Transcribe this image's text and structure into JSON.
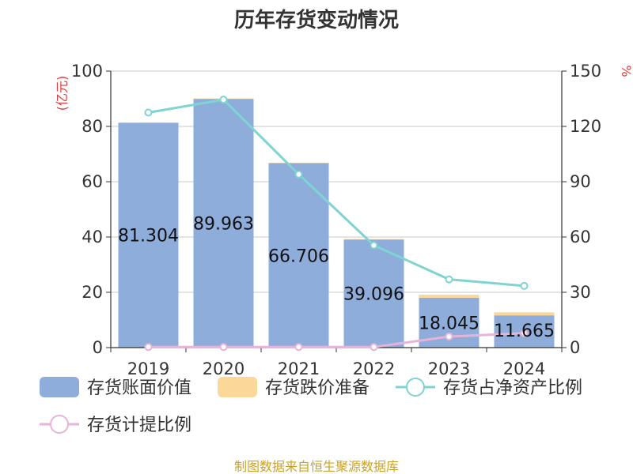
{
  "chart_data": {
    "type": "bar",
    "title": "历年存货变动情况",
    "categories": [
      "2019",
      "2020",
      "2021",
      "2022",
      "2023",
      "2024"
    ],
    "left_axis": {
      "unit": "(亿元)",
      "ylim": [
        0,
        100
      ],
      "ticks": [
        0,
        20,
        40,
        60,
        80,
        100
      ]
    },
    "right_axis": {
      "unit": "%",
      "ylim": [
        0,
        150
      ],
      "ticks": [
        0,
        30,
        60,
        90,
        120,
        150
      ]
    },
    "series": [
      {
        "name": "存货账面价值",
        "type": "bar",
        "axis": "left",
        "stack": "s",
        "color": "#8eaddb",
        "values": [
          81.304,
          89.963,
          66.706,
          39.096,
          18.045,
          11.665
        ],
        "labels": [
          "81.304",
          "89.963",
          "66.706",
          "39.096",
          "18.045",
          "11.665"
        ]
      },
      {
        "name": "存货跌价准备",
        "type": "bar",
        "axis": "left",
        "stack": "s",
        "color": "#fbd79a",
        "values": [
          0.15,
          0.15,
          0.15,
          0.15,
          1.1,
          1.1
        ]
      },
      {
        "name": "存货占净资产比例",
        "type": "line",
        "axis": "right",
        "color": "#7fd3d3",
        "values": [
          127.5,
          134.5,
          94.0,
          55.5,
          37.0,
          33.5
        ]
      },
      {
        "name": "存货计提比例",
        "type": "line",
        "axis": "right",
        "color": "#e8b3d8",
        "values": [
          0.3,
          0.3,
          0.3,
          0.3,
          6.0,
          7.8
        ]
      }
    ],
    "grid": true,
    "legend_position": "bottom"
  },
  "footer": {
    "source": "制图数据来自恒生聚源数据库"
  }
}
